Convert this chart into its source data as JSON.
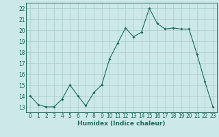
{
  "x": [
    0,
    1,
    2,
    3,
    4,
    5,
    6,
    7,
    8,
    9,
    10,
    11,
    12,
    13,
    14,
    15,
    16,
    17,
    18,
    19,
    20,
    21,
    22,
    23
  ],
  "y": [
    14.0,
    13.2,
    13.0,
    13.0,
    13.7,
    15.0,
    14.0,
    13.1,
    14.3,
    15.0,
    17.4,
    18.8,
    20.2,
    19.4,
    19.8,
    22.0,
    20.6,
    20.1,
    20.2,
    20.1,
    20.1,
    17.8,
    15.3,
    13.0
  ],
  "line_color": "#1a6b5a",
  "marker": "D",
  "marker_size": 1.8,
  "bg_color": "#cce8e8",
  "grid_color": "#aacccc",
  "xlabel": "Humidex (Indice chaleur)",
  "xlim": [
    -0.5,
    23.5
  ],
  "ylim": [
    12.5,
    22.5
  ],
  "yticks": [
    13,
    14,
    15,
    16,
    17,
    18,
    19,
    20,
    21,
    22
  ],
  "xticks": [
    0,
    1,
    2,
    3,
    4,
    5,
    6,
    7,
    8,
    9,
    10,
    11,
    12,
    13,
    14,
    15,
    16,
    17,
    18,
    19,
    20,
    21,
    22,
    23
  ],
  "tick_color": "#1a6b5a",
  "label_fontsize": 6.5,
  "tick_fontsize": 5.5
}
